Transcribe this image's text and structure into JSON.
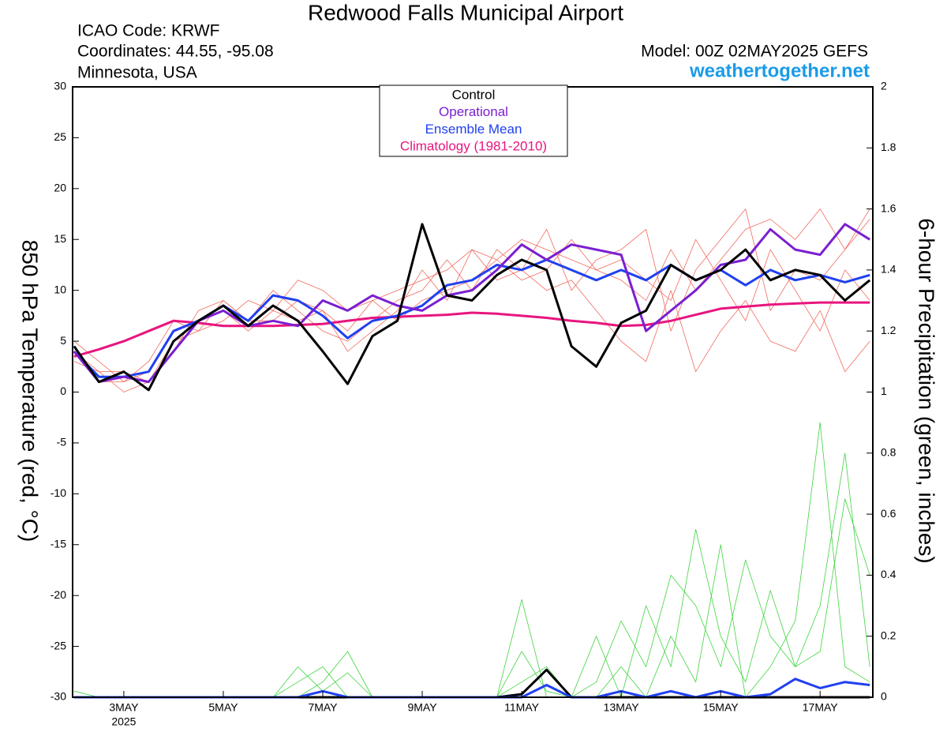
{
  "chart_data": {
    "type": "line",
    "title": "Redwood Falls Municipal Airport",
    "info_left": [
      "ICAO Code: KRWF",
      "Coordinates: 44.55, -95.08",
      "Minnesota, USA"
    ],
    "model": "Model: 00Z 02MAY2025 GEFS",
    "site": "weathertogether.net",
    "y_label": "850 hPa Temperature (red, °C)",
    "y2_label": "6-hour Precipitation (green, inches)",
    "x_sublabel": "2025",
    "x": [
      0,
      0.5,
      1,
      1.5,
      2,
      2.5,
      3,
      3.5,
      4,
      4.5,
      5,
      5.5,
      6,
      6.5,
      7,
      7.5,
      8,
      8.5,
      9,
      9.5,
      10,
      10.5,
      11,
      11.5,
      12,
      12.5,
      13,
      13.5,
      14,
      14.5,
      15,
      15.5,
      16
    ],
    "xlim": [
      -0.03,
      16.06
    ],
    "xticks": [
      {
        "value": 1,
        "label": "3MAY"
      },
      {
        "value": 3,
        "label": "5MAY"
      },
      {
        "value": 5,
        "label": "7MAY"
      },
      {
        "value": 7,
        "label": "9MAY"
      },
      {
        "value": 9,
        "label": "11MAY"
      },
      {
        "value": 11,
        "label": "13MAY"
      },
      {
        "value": 13,
        "label": "15MAY"
      },
      {
        "value": 15,
        "label": "17MAY"
      }
    ],
    "ylim": [
      -30,
      30
    ],
    "yticks": [
      -30,
      -25,
      -20,
      -15,
      -10,
      -5,
      0,
      5,
      10,
      15,
      20,
      25,
      30
    ],
    "y2lim": [
      0,
      2
    ],
    "y2ticks": [
      0,
      0.2,
      0.4,
      0.6,
      0.8,
      1,
      1.2,
      1.4,
      1.6,
      1.8,
      2
    ],
    "temperature_members": {
      "color": "#f26a5e",
      "values": [
        [
          4,
          1,
          1,
          2,
          6,
          7,
          8,
          6,
          8,
          7,
          8,
          6,
          9,
          7,
          9,
          10,
          11,
          13,
          15,
          14,
          13,
          12,
          11,
          9,
          14,
          10,
          13,
          16,
          17,
          15,
          18,
          14,
          17
        ],
        [
          3,
          2,
          0,
          1,
          5,
          6,
          9,
          7,
          7,
          9,
          8,
          4,
          6,
          8,
          12,
          9,
          14,
          11,
          12,
          16,
          10,
          13,
          14,
          16,
          6,
          12,
          15,
          18,
          8,
          12,
          11,
          14,
          18
        ],
        [
          4,
          2,
          2,
          1,
          4,
          8,
          9,
          7,
          10,
          8,
          6,
          5,
          7,
          9,
          10,
          13,
          10,
          14,
          12,
          10,
          11,
          8,
          5,
          3,
          10,
          2,
          6,
          9,
          5,
          4,
          8,
          2,
          5
        ],
        [
          5,
          3,
          1,
          3,
          7,
          6,
          7,
          9,
          8,
          11,
          10,
          8,
          9,
          10,
          11,
          12,
          14,
          13,
          11,
          12,
          15,
          12,
          13,
          11,
          9,
          15,
          11,
          7,
          14,
          10,
          6,
          12,
          9
        ]
      ]
    },
    "precip_members": {
      "color": "#3fd43f",
      "axis": "y2",
      "values": [
        [
          0,
          0,
          0,
          0,
          0,
          0,
          0,
          0,
          0,
          0.05,
          0.1,
          0,
          0,
          0,
          0,
          0,
          0,
          0,
          0.32,
          0,
          0,
          0,
          0.1,
          0,
          0.2,
          0.05,
          0.5,
          0,
          0.1,
          0.25,
          0.9,
          0.1,
          0.05
        ],
        [
          0.02,
          0,
          0,
          0,
          0,
          0,
          0,
          0,
          0,
          0.1,
          0.02,
          0.08,
          0,
          0,
          0,
          0,
          0,
          0,
          0.15,
          0.02,
          0,
          0.05,
          0.25,
          0.1,
          0.4,
          0.3,
          0.1,
          0.45,
          0.2,
          0.1,
          0.3,
          0.8,
          0.1
        ],
        [
          0,
          0,
          0,
          0,
          0,
          0,
          0,
          0,
          0,
          0,
          0.05,
          0.15,
          0,
          0,
          0,
          0,
          0,
          0,
          0.05,
          0.1,
          0,
          0.2,
          0,
          0.3,
          0.1,
          0.55,
          0.2,
          0.05,
          0.35,
          0.1,
          0.15,
          0.65,
          0.4
        ]
      ]
    },
    "precip_series": [
      {
        "color": "#000000",
        "axis": "y2",
        "values": [
          0,
          0,
          0,
          0,
          0,
          0,
          0,
          0,
          0,
          0,
          0,
          0,
          0,
          0,
          0,
          0,
          0,
          0,
          0.01,
          0.09,
          0,
          0,
          0,
          0,
          0,
          0,
          0,
          0,
          0,
          0,
          0,
          0,
          0
        ]
      },
      {
        "color": "#2040f0",
        "axis": "y2",
        "values": [
          0,
          0,
          0,
          0,
          0,
          0,
          0,
          0,
          0,
          0,
          0.02,
          0,
          0,
          0,
          0,
          0,
          0,
          0,
          0,
          0.04,
          0,
          0,
          0.02,
          0,
          0.02,
          0,
          0.02,
          0,
          0.01,
          0.06,
          0.03,
          0.05,
          0.04
        ]
      }
    ],
    "series": [
      {
        "name": "Control",
        "color": "#000000",
        "values": [
          4.5,
          1,
          2,
          0.2,
          5,
          7,
          8.5,
          6.5,
          8.5,
          7,
          4,
          0.8,
          5.5,
          7,
          16.5,
          9.5,
          9,
          11.5,
          13,
          12,
          4.5,
          2.5,
          6.8,
          8,
          12.5,
          11,
          12,
          14,
          11,
          12,
          11.5,
          9,
          11
        ]
      },
      {
        "name": "Operational",
        "color": "#7a1fd1",
        "values": [
          4,
          1,
          1.5,
          1,
          4,
          7,
          8,
          6.5,
          7,
          6.5,
          9,
          8,
          9.5,
          8.5,
          8,
          9.5,
          10,
          12,
          14.5,
          13,
          14.5,
          14,
          13.5,
          6,
          8,
          10,
          12.5,
          13,
          16,
          14,
          13.5,
          16.5,
          15
        ]
      },
      {
        "name": "Ensemble Mean",
        "color": "#2040f0",
        "values": [
          4,
          1.5,
          1.5,
          2,
          6,
          7,
          8.5,
          7,
          9.5,
          9,
          7.5,
          5.3,
          7,
          7.5,
          8.5,
          10.5,
          11,
          12.5,
          12,
          13,
          12,
          11,
          12,
          11,
          12.5,
          11,
          12,
          10.5,
          12,
          11,
          11.5,
          10.8,
          11.5
        ]
      },
      {
        "name": "Climatology (1981-2010)",
        "color": "#e8157f",
        "values": [
          3.5,
          4.2,
          5,
          6,
          7,
          6.8,
          6.5,
          6.5,
          6.5,
          6.6,
          6.7,
          7,
          7.3,
          7.4,
          7.5,
          7.6,
          7.8,
          7.7,
          7.5,
          7.3,
          7,
          6.8,
          6.5,
          6.6,
          7,
          7.6,
          8.2,
          8.4,
          8.6,
          8.7,
          8.8,
          8.8,
          8.8
        ]
      }
    ]
  }
}
